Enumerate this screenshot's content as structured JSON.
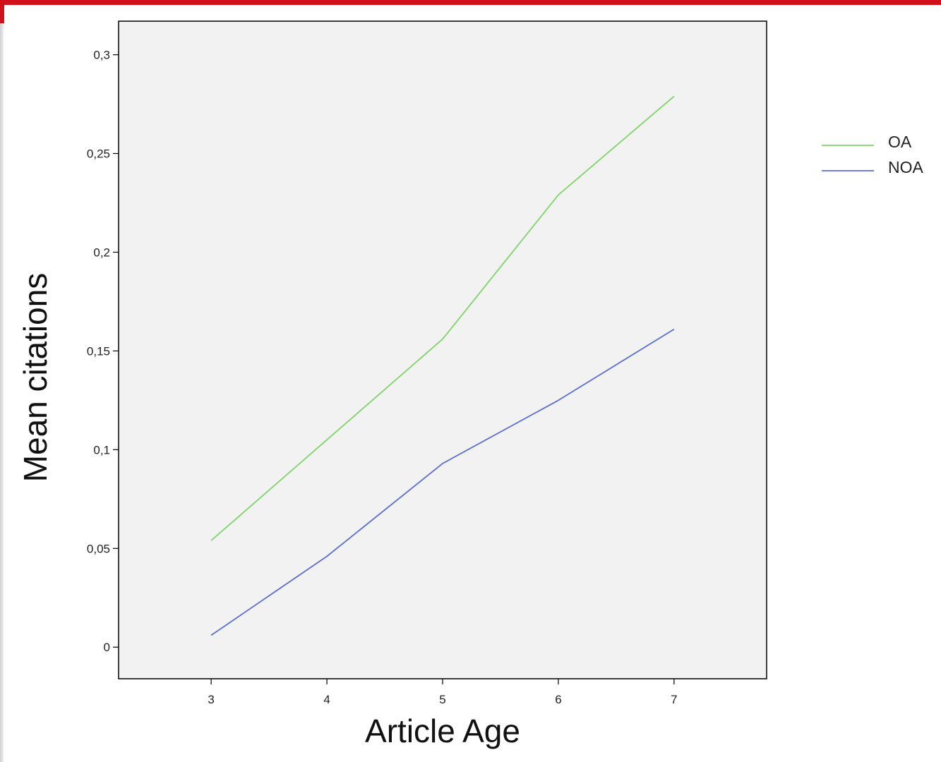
{
  "chart_data": {
    "type": "line",
    "title": "",
    "xlabel": "Article Age",
    "ylabel": "Mean citations",
    "x": [
      3,
      4,
      5,
      6,
      7
    ],
    "x_ticks": [
      "3",
      "4",
      "5",
      "6",
      "7"
    ],
    "xlim": [
      2.2,
      7.8
    ],
    "y_ticks": [
      {
        "value": 0,
        "label": "0"
      },
      {
        "value": 0.05,
        "label": "0,05"
      },
      {
        "value": 0.1,
        "label": "0,1"
      },
      {
        "value": 0.15,
        "label": "0,15"
      },
      {
        "value": 0.2,
        "label": "0,2"
      },
      {
        "value": 0.25,
        "label": "0,25"
      },
      {
        "value": 0.3,
        "label": "0,3"
      }
    ],
    "ylim": [
      -0.016,
      0.317
    ],
    "grid": false,
    "legend_position": "right",
    "plot_background": "#f2f2f2",
    "series": [
      {
        "name": "OA",
        "color": "#7fd36a",
        "values": [
          0.054,
          0.105,
          0.156,
          0.229,
          0.279
        ]
      },
      {
        "name": "NOA",
        "color": "#5b6fd0",
        "values": [
          0.006,
          0.046,
          0.093,
          0.125,
          0.161
        ]
      }
    ]
  }
}
